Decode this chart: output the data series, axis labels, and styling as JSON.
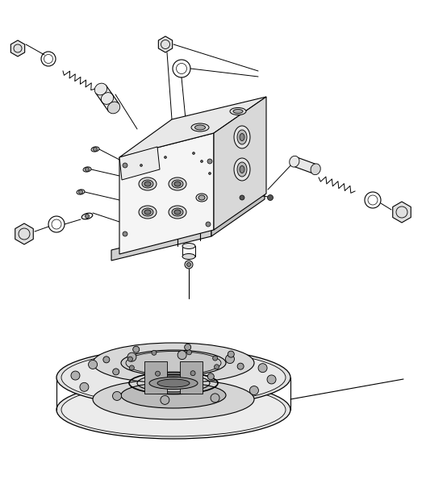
{
  "background_color": "#ffffff",
  "line_color": "#000000",
  "fig_width": 5.28,
  "fig_height": 6.05,
  "dpi": 100
}
